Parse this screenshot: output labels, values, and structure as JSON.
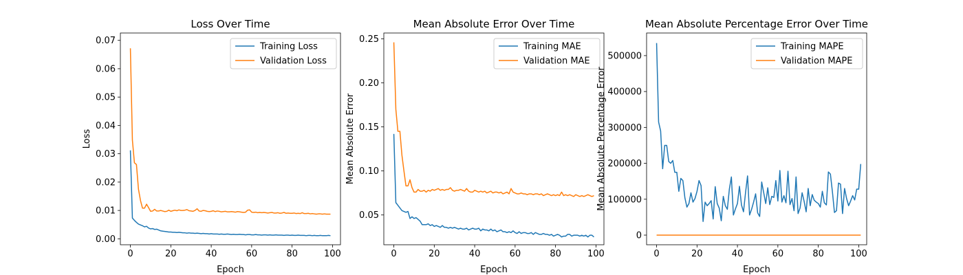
{
  "chart_data": [
    {
      "type": "line",
      "title": "Loss Over Time",
      "xlabel": "Epoch",
      "ylabel": "Loss",
      "xlim": [
        -4.95,
        103.95
      ],
      "ylim": [
        -0.0021,
        0.0726
      ],
      "xticks": [
        0,
        20,
        40,
        60,
        80,
        100
      ],
      "xtick_labels": [
        "0",
        "20",
        "40",
        "60",
        "80",
        "100"
      ],
      "yticks": [
        0,
        0.01,
        0.02,
        0.03,
        0.04,
        0.05,
        0.06,
        0.07
      ],
      "ytick_labels": [
        "0.00",
        "0.01",
        "0.02",
        "0.03",
        "0.04",
        "0.05",
        "0.06",
        "0.07"
      ],
      "legend": "top-right",
      "grid": false,
      "x_start": 0,
      "series": [
        {
          "name": "Training Loss",
          "color": "#1f77b4",
          "values": [
            0.0312,
            0.0073,
            0.0065,
            0.0058,
            0.0052,
            0.0049,
            0.0046,
            0.0042,
            0.0044,
            0.0038,
            0.0035,
            0.0036,
            0.0033,
            0.0034,
            0.0031,
            0.0028,
            0.0027,
            0.0026,
            0.0025,
            0.0024,
            0.0024,
            0.0023,
            0.0023,
            0.0022,
            0.0023,
            0.0022,
            0.0021,
            0.0021,
            0.002,
            0.0021,
            0.002,
            0.002,
            0.0019,
            0.002,
            0.0019,
            0.0018,
            0.0019,
            0.0018,
            0.0018,
            0.0017,
            0.0018,
            0.0017,
            0.0017,
            0.0017,
            0.0016,
            0.0017,
            0.0016,
            0.0016,
            0.0017,
            0.0016,
            0.0015,
            0.0016,
            0.0015,
            0.0015,
            0.0016,
            0.0015,
            0.0015,
            0.0014,
            0.0015,
            0.0015,
            0.0014,
            0.0014,
            0.0015,
            0.0014,
            0.0014,
            0.0013,
            0.0014,
            0.0014,
            0.0013,
            0.0014,
            0.0013,
            0.0013,
            0.0014,
            0.0013,
            0.0013,
            0.0013,
            0.0012,
            0.0013,
            0.0013,
            0.0012,
            0.0013,
            0.0012,
            0.0012,
            0.0013,
            0.0012,
            0.0012,
            0.0012,
            0.0011,
            0.0012,
            0.0012,
            0.0011,
            0.0012,
            0.0011,
            0.0011,
            0.0012,
            0.0011,
            0.0011,
            0.0011,
            0.0012,
            0.0011
          ]
        },
        {
          "name": "Validation Loss",
          "color": "#ff7f0e",
          "values": [
            0.0672,
            0.0348,
            0.0268,
            0.0262,
            0.0175,
            0.0135,
            0.0108,
            0.0108,
            0.0122,
            0.011,
            0.0097,
            0.0098,
            0.0104,
            0.0098,
            0.0098,
            0.01,
            0.0098,
            0.0096,
            0.0097,
            0.0101,
            0.0097,
            0.0099,
            0.0101,
            0.0099,
            0.0102,
            0.01,
            0.01,
            0.0101,
            0.0103,
            0.0099,
            0.0098,
            0.0097,
            0.01,
            0.0106,
            0.0098,
            0.0097,
            0.01,
            0.0099,
            0.0097,
            0.0096,
            0.0097,
            0.0099,
            0.0096,
            0.0098,
            0.0097,
            0.0095,
            0.0096,
            0.0097,
            0.0095,
            0.0095,
            0.0096,
            0.0095,
            0.0094,
            0.0096,
            0.0095,
            0.0094,
            0.0093,
            0.0094,
            0.0101,
            0.0102,
            0.0094,
            0.0093,
            0.0094,
            0.0092,
            0.0093,
            0.0092,
            0.0093,
            0.0092,
            0.0091,
            0.0092,
            0.0093,
            0.0091,
            0.0091,
            0.0092,
            0.009,
            0.0091,
            0.0093,
            0.009,
            0.0091,
            0.009,
            0.009,
            0.0091,
            0.0089,
            0.009,
            0.0089,
            0.0092,
            0.0089,
            0.0089,
            0.009,
            0.0088,
            0.0089,
            0.0088,
            0.0087,
            0.0088,
            0.0088,
            0.0087,
            0.0088,
            0.0087,
            0.0087,
            0.0087
          ]
        }
      ]
    },
    {
      "type": "line",
      "title": "Mean Absolute Error Over Time",
      "xlabel": "Epoch",
      "ylabel": "Mean Absolute Error",
      "xlim": [
        -4.95,
        103.95
      ],
      "ylim": [
        0.0162,
        0.2566
      ],
      "xticks": [
        0,
        20,
        40,
        60,
        80,
        100
      ],
      "xtick_labels": [
        "0",
        "20",
        "40",
        "60",
        "80",
        "100"
      ],
      "yticks": [
        0.05,
        0.1,
        0.15,
        0.2,
        0.25
      ],
      "ytick_labels": [
        "0.05",
        "0.10",
        "0.15",
        "0.20",
        "0.25"
      ],
      "legend": "top-right",
      "grid": false,
      "x_start": 0,
      "series": [
        {
          "name": "Training MAE",
          "color": "#1f77b4",
          "values": [
            0.142,
            0.064,
            0.061,
            0.058,
            0.055,
            0.054,
            0.053,
            0.054,
            0.046,
            0.048,
            0.046,
            0.047,
            0.045,
            0.043,
            0.039,
            0.039,
            0.039,
            0.04,
            0.038,
            0.039,
            0.037,
            0.038,
            0.037,
            0.036,
            0.038,
            0.036,
            0.036,
            0.035,
            0.036,
            0.035,
            0.036,
            0.035,
            0.034,
            0.035,
            0.034,
            0.034,
            0.035,
            0.033,
            0.034,
            0.035,
            0.034,
            0.034,
            0.035,
            0.032,
            0.034,
            0.033,
            0.033,
            0.032,
            0.034,
            0.032,
            0.033,
            0.031,
            0.032,
            0.033,
            0.031,
            0.031,
            0.03,
            0.031,
            0.03,
            0.032,
            0.03,
            0.029,
            0.031,
            0.029,
            0.03,
            0.03,
            0.029,
            0.029,
            0.03,
            0.028,
            0.03,
            0.029,
            0.028,
            0.028,
            0.029,
            0.028,
            0.028,
            0.027,
            0.028,
            0.026,
            0.027,
            0.028,
            0.027,
            0.025,
            0.026,
            0.026,
            0.028,
            0.028,
            0.026,
            0.027,
            0.027,
            0.027,
            0.026,
            0.027,
            0.026,
            0.027,
            0.025,
            0.027,
            0.027,
            0.025
          ]
        },
        {
          "name": "Validation MAE",
          "color": "#ff7f0e",
          "values": [
            0.246,
            0.17,
            0.145,
            0.145,
            0.118,
            0.1,
            0.083,
            0.083,
            0.09,
            0.081,
            0.076,
            0.076,
            0.079,
            0.077,
            0.077,
            0.078,
            0.076,
            0.078,
            0.077,
            0.079,
            0.078,
            0.079,
            0.08,
            0.078,
            0.079,
            0.078,
            0.079,
            0.079,
            0.081,
            0.078,
            0.077,
            0.078,
            0.078,
            0.079,
            0.078,
            0.077,
            0.08,
            0.077,
            0.076,
            0.076,
            0.078,
            0.077,
            0.076,
            0.077,
            0.076,
            0.077,
            0.075,
            0.076,
            0.077,
            0.075,
            0.076,
            0.076,
            0.075,
            0.076,
            0.074,
            0.075,
            0.076,
            0.074,
            0.08,
            0.076,
            0.075,
            0.074,
            0.074,
            0.075,
            0.074,
            0.074,
            0.073,
            0.074,
            0.074,
            0.073,
            0.074,
            0.074,
            0.073,
            0.074,
            0.072,
            0.073,
            0.074,
            0.073,
            0.072,
            0.073,
            0.072,
            0.073,
            0.072,
            0.076,
            0.072,
            0.073,
            0.072,
            0.073,
            0.072,
            0.071,
            0.073,
            0.072,
            0.071,
            0.072,
            0.071,
            0.072,
            0.073,
            0.072,
            0.071,
            0.072
          ]
        }
      ]
    },
    {
      "type": "line",
      "title": "Mean Absolute Percentage Error Over Time",
      "xlabel": "Epoch",
      "ylabel": "Mean Absolute Percentage Error",
      "xlim": [
        -4.95,
        103.95
      ],
      "ylim": [
        -26800,
        563000
      ],
      "xticks": [
        0,
        20,
        40,
        60,
        80,
        100
      ],
      "xtick_labels": [
        "0",
        "20",
        "40",
        "60",
        "80",
        "100"
      ],
      "yticks": [
        0,
        100000,
        200000,
        300000,
        400000,
        500000
      ],
      "ytick_labels": [
        "0",
        "100000",
        "200000",
        "300000",
        "400000",
        "500000"
      ],
      "legend": "top-right",
      "grid": false,
      "x_start": 0,
      "series": [
        {
          "name": "Training MAPE",
          "color": "#1f77b4",
          "values": [
            535000,
            315000,
            290000,
            185000,
            250000,
            250000,
            205000,
            200000,
            208000,
            175000,
            175000,
            122000,
            158000,
            152000,
            104000,
            78000,
            88000,
            118000,
            92000,
            102000,
            122000,
            152000,
            138000,
            38000,
            92000,
            82000,
            88000,
            96000,
            45000,
            135000,
            88000,
            75000,
            40000,
            108000,
            82000,
            72000,
            128000,
            162000,
            56000,
            73000,
            88000,
            136000,
            84000,
            65000,
            118000,
            165000,
            56000,
            72000,
            92000,
            115000,
            62000,
            52000,
            148000,
            118000,
            88000,
            132000,
            85000,
            108000,
            105000,
            152000,
            95000,
            180000,
            92000,
            110000,
            90000,
            178000,
            85000,
            102000,
            68000,
            162000,
            60000,
            76000,
            118000,
            94000,
            65000,
            130000,
            82000,
            113000,
            97000,
            92000,
            88000,
            78000,
            122000,
            90000,
            84000,
            176000,
            170000,
            120000,
            63000,
            68000,
            145000,
            142000,
            60000,
            130000,
            102000,
            82000,
            95000,
            110000,
            98000,
            128000,
            128000,
            198000
          ]
        },
        {
          "name": "Validation MAPE",
          "color": "#ff7f0e",
          "values": [
            0,
            0,
            0,
            0,
            0,
            0,
            0,
            0,
            0,
            0,
            0,
            0,
            0,
            0,
            0,
            0,
            0,
            0,
            0,
            0,
            0,
            0,
            0,
            0,
            0,
            0,
            0,
            0,
            0,
            0,
            0,
            0,
            0,
            0,
            0,
            0,
            0,
            0,
            0,
            0,
            0,
            0,
            0,
            0,
            0,
            0,
            0,
            0,
            0,
            0,
            0,
            0,
            0,
            0,
            0,
            0,
            0,
            0,
            0,
            0,
            0,
            0,
            0,
            0,
            0,
            0,
            0,
            0,
            0,
            0,
            0,
            0,
            0,
            0,
            0,
            0,
            0,
            0,
            0,
            0,
            0,
            0,
            0,
            0,
            0,
            0,
            0,
            0,
            0,
            0,
            0,
            0,
            0,
            0,
            0,
            0,
            0,
            0,
            0,
            0,
            0,
            0
          ]
        }
      ]
    }
  ]
}
